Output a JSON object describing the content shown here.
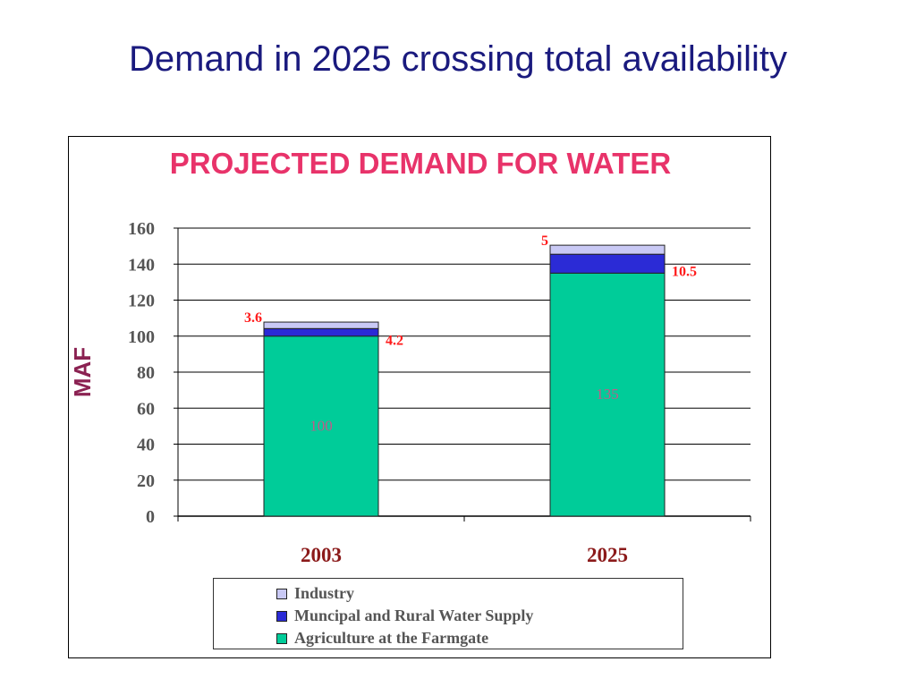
{
  "slide": {
    "title": "Demand in 2025 crossing total availability"
  },
  "colors": {
    "title": "#1a1a7e",
    "chart_title": "#e8336a",
    "ylabel": "#8b2252",
    "category_label": "#8b1a1a",
    "data_label": "#ff1a1a",
    "inner_label": "#c25a8a",
    "industry": "#c9c9f5",
    "municipal": "#2b2bd6",
    "agriculture": "#00cc99"
  },
  "chart_data": {
    "type": "bar",
    "stacked": true,
    "title": "PROJECTED DEMAND FOR WATER",
    "xlabel": "",
    "ylabel": "MAF",
    "ylim": [
      0,
      160
    ],
    "yticks": [
      0,
      20,
      40,
      60,
      80,
      100,
      120,
      140,
      160
    ],
    "grid": true,
    "legend_position": "bottom",
    "categories": [
      "2003",
      "2025"
    ],
    "series": [
      {
        "name": "Agriculture at the Farmgate",
        "key": "agriculture",
        "values": [
          100,
          135
        ],
        "labels": [
          "100",
          "135"
        ]
      },
      {
        "name": "Muncipal and Rural Water Supply",
        "key": "municipal",
        "values": [
          4.2,
          10.5
        ],
        "labels": [
          "4.2",
          "10.5"
        ]
      },
      {
        "name": "Industry",
        "key": "industry",
        "values": [
          3.6,
          5
        ],
        "labels": [
          "3.6",
          "5"
        ]
      }
    ],
    "legend": [
      {
        "name": "Industry",
        "key": "industry"
      },
      {
        "name": "Muncipal and Rural Water Supply",
        "key": "municipal"
      },
      {
        "name": "Agriculture at the Farmgate",
        "key": "agriculture"
      }
    ]
  }
}
